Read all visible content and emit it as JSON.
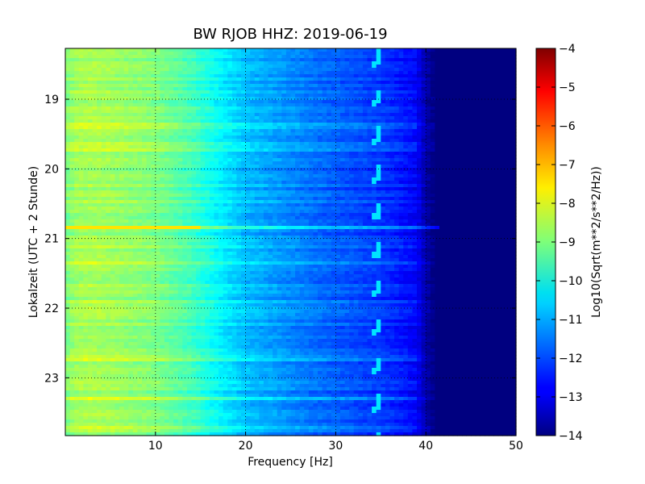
{
  "chart_data": {
    "type": "heatmap",
    "title": "BW RJOB HHZ: 2019-06-19",
    "xlabel": "Frequency [Hz]",
    "ylabel": "Lokalzeit (UTC + 2 Stunde)",
    "xlim": [
      0,
      50
    ],
    "ylim": [
      18.27,
      23.83
    ],
    "y_inverted": true,
    "x_ticks": [
      10,
      20,
      30,
      40,
      50
    ],
    "y_ticks": [
      19,
      20,
      21,
      22,
      23
    ],
    "grid": true,
    "grid_style": "dotted",
    "colormap": "jet",
    "colorbar": {
      "label": "Log10(Sqrt(m**2/s**2/Hz))",
      "range": [
        -14,
        -4
      ],
      "ticks": [
        -14,
        -13,
        -12,
        -11,
        -10,
        -9,
        -8,
        -7,
        -6,
        -5,
        -4
      ]
    },
    "background_profile": {
      "frequency": [
        0,
        1,
        3,
        6,
        10,
        14,
        17,
        20,
        24,
        28,
        32,
        36,
        39,
        40,
        41,
        50
      ],
      "log_amplitude": [
        -9.1,
        -8.7,
        -8.6,
        -8.75,
        -9.0,
        -9.6,
        -10.3,
        -10.9,
        -11.3,
        -11.7,
        -12.0,
        -12.35,
        -12.8,
        -13.6,
        -14.0,
        -14.0
      ]
    },
    "bright_bands": [
      {
        "time": 20.84,
        "freq_max": 41.5,
        "log_amplitude_low_freq": -7.5
      }
    ],
    "tonal_traces": [
      {
        "frequency_range": [
          33.9,
          34.8
        ],
        "log_amplitude": -10.5
      }
    ]
  }
}
